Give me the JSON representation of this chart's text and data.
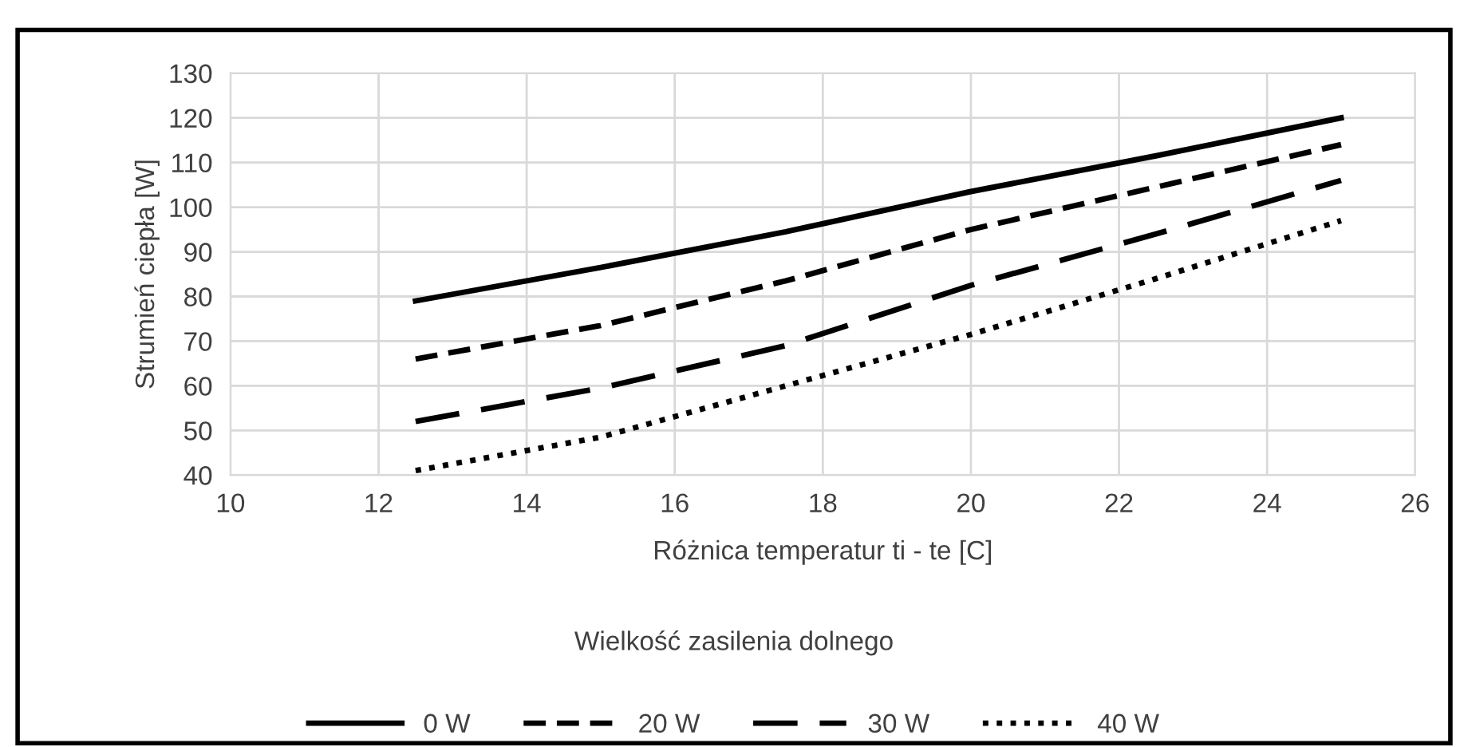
{
  "chart_data": {
    "type": "line",
    "xlabel": "Różnica temperatur ti - te [C]",
    "ylabel": "Strumień ciepła [W]",
    "legend_title": "Wielkość zasilenia dolnego",
    "x": [
      12.5,
      15,
      17.5,
      20,
      22.5,
      25
    ],
    "series": [
      {
        "name": "0 W",
        "color": "#000000",
        "line_style": "solid",
        "values": [
          79,
          86.5,
          94.5,
          103.5,
          111.5,
          120
        ]
      },
      {
        "name": "20 W",
        "color": "#000000",
        "line_style": "dashed",
        "values": [
          66,
          73.5,
          83.5,
          95,
          104.5,
          114
        ]
      },
      {
        "name": "30 W",
        "color": "#000000",
        "line_style": "longdash",
        "values": [
          52,
          59.5,
          69,
          82.5,
          94,
          106
        ]
      },
      {
        "name": "40 W",
        "color": "#000000",
        "line_style": "dotted",
        "values": [
          41,
          48.5,
          60,
          71.5,
          84,
          97
        ]
      }
    ],
    "xlim": [
      10,
      26
    ],
    "xticks": [
      10,
      12,
      14,
      16,
      18,
      20,
      22,
      24,
      26
    ],
    "ylim": [
      40,
      130
    ],
    "yticks": [
      40,
      50,
      60,
      70,
      80,
      90,
      100,
      110,
      120,
      130
    ],
    "grid": true,
    "legend": "bottom"
  }
}
